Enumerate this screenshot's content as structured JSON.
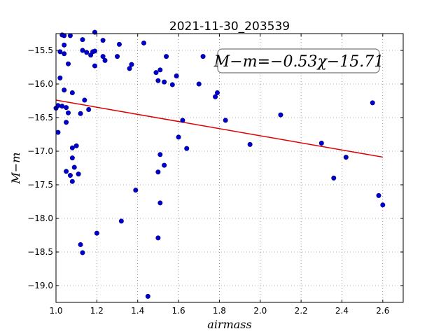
{
  "chart_data": {
    "type": "scatter",
    "title": "2021-11-30_203539",
    "xlabel": "airmass",
    "ylabel": "M−m",
    "xlim": [
      1.0,
      2.7
    ],
    "ylim": [
      -19.25,
      -15.25
    ],
    "y_inverted": true,
    "grid": true,
    "xticks": [
      1.0,
      1.2,
      1.4,
      1.6,
      1.8,
      2.0,
      2.2,
      2.4,
      2.6
    ],
    "xtick_labels": [
      "1.0",
      "1.2",
      "1.4",
      "1.6",
      "1.8",
      "2.0",
      "2.2",
      "2.4",
      "2.6"
    ],
    "yticks": [
      -15.5,
      -16.0,
      -16.5,
      -17.0,
      -17.5,
      -18.0,
      -18.5,
      -19.0
    ],
    "ytick_labels": [
      "−15.5",
      "−16.0",
      "−16.5",
      "−17.0",
      "−17.5",
      "−18.0",
      "−18.5",
      "−19.0"
    ],
    "fit": {
      "slope": -0.53,
      "intercept": -15.71,
      "x_range": [
        1.0,
        2.6
      ],
      "color": "#dd0000",
      "label": "M−m=−0.53χ−15.71"
    },
    "point_color": "#0000cc",
    "points": [
      [
        1.0,
        -16.36
      ],
      [
        1.01,
        -16.32
      ],
      [
        1.01,
        -16.72
      ],
      [
        1.02,
        -15.52
      ],
      [
        1.02,
        -15.91
      ],
      [
        1.03,
        -15.27
      ],
      [
        1.03,
        -16.33
      ],
      [
        1.04,
        -15.28
      ],
      [
        1.04,
        -15.55
      ],
      [
        1.04,
        -15.42
      ],
      [
        1.04,
        -16.09
      ],
      [
        1.05,
        -16.35
      ],
      [
        1.05,
        -16.57
      ],
      [
        1.05,
        -17.3
      ],
      [
        1.06,
        -15.7
      ],
      [
        1.06,
        -16.43
      ],
      [
        1.07,
        -15.28
      ],
      [
        1.07,
        -17.36
      ],
      [
        1.08,
        -16.13
      ],
      [
        1.08,
        -17.1
      ],
      [
        1.08,
        -16.95
      ],
      [
        1.08,
        -17.45
      ],
      [
        1.09,
        -17.24
      ],
      [
        1.1,
        -16.92
      ],
      [
        1.11,
        -17.34
      ],
      [
        1.12,
        -16.44
      ],
      [
        1.12,
        -18.39
      ],
      [
        1.13,
        -15.5
      ],
      [
        1.13,
        -18.51
      ],
      [
        1.13,
        -15.34
      ],
      [
        1.14,
        -16.24
      ],
      [
        1.15,
        -15.53
      ],
      [
        1.16,
        -16.38
      ],
      [
        1.17,
        -15.57
      ],
      [
        1.18,
        -15.52
      ],
      [
        1.19,
        -15.23
      ],
      [
        1.19,
        -15.51
      ],
      [
        1.19,
        -15.73
      ],
      [
        1.2,
        -18.22
      ],
      [
        1.23,
        -15.59
      ],
      [
        1.23,
        -15.35
      ],
      [
        1.24,
        -15.65
      ],
      [
        1.3,
        -15.59
      ],
      [
        1.31,
        -15.41
      ],
      [
        1.32,
        -18.04
      ],
      [
        1.36,
        -15.77
      ],
      [
        1.37,
        -15.71
      ],
      [
        1.39,
        -17.58
      ],
      [
        1.43,
        -15.39
      ],
      [
        1.45,
        -19.16
      ],
      [
        1.49,
        -15.83
      ],
      [
        1.5,
        -18.29
      ],
      [
        1.5,
        -17.31
      ],
      [
        1.5,
        -15.95
      ],
      [
        1.51,
        -17.05
      ],
      [
        1.51,
        -17.77
      ],
      [
        1.51,
        -15.79
      ],
      [
        1.53,
        -15.97
      ],
      [
        1.53,
        -17.21
      ],
      [
        1.54,
        -15.59
      ],
      [
        1.57,
        -16.01
      ],
      [
        1.59,
        -15.88
      ],
      [
        1.6,
        -16.79
      ],
      [
        1.62,
        -16.54
      ],
      [
        1.64,
        -16.96
      ],
      [
        1.7,
        -16.0
      ],
      [
        1.72,
        -15.59
      ],
      [
        1.78,
        -16.19
      ],
      [
        1.79,
        -16.13
      ],
      [
        1.83,
        -16.54
      ],
      [
        1.95,
        -16.9
      ],
      [
        2.1,
        -16.46
      ],
      [
        2.3,
        -16.88
      ],
      [
        2.36,
        -17.4
      ],
      [
        2.42,
        -17.09
      ],
      [
        2.55,
        -16.28
      ],
      [
        2.58,
        -17.66
      ],
      [
        2.6,
        -17.8
      ]
    ]
  }
}
